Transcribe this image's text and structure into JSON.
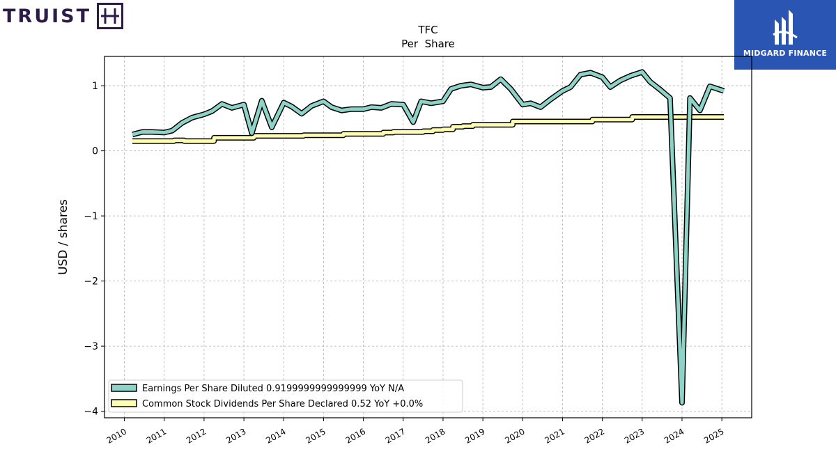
{
  "brand": {
    "left_name": "TRUIST",
    "right_name": "MIDGARD FINANCE"
  },
  "chart_data": {
    "type": "line",
    "title": "TFC",
    "subtitle": "Per  Share",
    "xlabel": "",
    "ylabel": "USD / shares",
    "ylim": [
      -4.1,
      1.45
    ],
    "xlim": [
      2009.5,
      2025.75
    ],
    "yticks": [
      -4,
      -3,
      -2,
      -1,
      0,
      1
    ],
    "xticks": [
      2010,
      2011,
      2012,
      2013,
      2014,
      2015,
      2016,
      2017,
      2018,
      2019,
      2020,
      2021,
      2022,
      2023,
      2024,
      2025
    ],
    "grid": true,
    "legend_position": "lower-left",
    "series": [
      {
        "name": "Earnings Per Share Diluted  0.9199999999999999 YoY N/A",
        "color": "#8dd3c7",
        "step": false,
        "points": [
          [
            2010.2,
            0.25
          ],
          [
            2010.45,
            0.29
          ],
          [
            2010.7,
            0.29
          ],
          [
            2011.0,
            0.28
          ],
          [
            2011.2,
            0.31
          ],
          [
            2011.45,
            0.43
          ],
          [
            2011.7,
            0.51
          ],
          [
            2012.0,
            0.56
          ],
          [
            2012.2,
            0.61
          ],
          [
            2012.45,
            0.72
          ],
          [
            2012.7,
            0.66
          ],
          [
            2013.0,
            0.71
          ],
          [
            2013.2,
            0.27
          ],
          [
            2013.45,
            0.77
          ],
          [
            2013.7,
            0.36
          ],
          [
            2014.0,
            0.74
          ],
          [
            2014.2,
            0.68
          ],
          [
            2014.45,
            0.57
          ],
          [
            2014.7,
            0.69
          ],
          [
            2015.0,
            0.76
          ],
          [
            2015.2,
            0.67
          ],
          [
            2015.45,
            0.62
          ],
          [
            2015.7,
            0.64
          ],
          [
            2016.0,
            0.64
          ],
          [
            2016.2,
            0.67
          ],
          [
            2016.45,
            0.66
          ],
          [
            2016.7,
            0.72
          ],
          [
            2017.0,
            0.71
          ],
          [
            2017.25,
            0.44
          ],
          [
            2017.45,
            0.76
          ],
          [
            2017.7,
            0.73
          ],
          [
            2018.0,
            0.76
          ],
          [
            2018.2,
            0.95
          ],
          [
            2018.45,
            1.0
          ],
          [
            2018.7,
            1.02
          ],
          [
            2019.0,
            0.97
          ],
          [
            2019.2,
            0.98
          ],
          [
            2019.45,
            1.1
          ],
          [
            2019.7,
            0.95
          ],
          [
            2020.0,
            0.71
          ],
          [
            2020.2,
            0.73
          ],
          [
            2020.45,
            0.67
          ],
          [
            2020.7,
            0.79
          ],
          [
            2021.0,
            0.92
          ],
          [
            2021.2,
            0.98
          ],
          [
            2021.45,
            1.17
          ],
          [
            2021.7,
            1.2
          ],
          [
            2022.0,
            1.13
          ],
          [
            2022.2,
            0.98
          ],
          [
            2022.45,
            1.08
          ],
          [
            2022.7,
            1.15
          ],
          [
            2023.0,
            1.21
          ],
          [
            2023.2,
            1.06
          ],
          [
            2023.45,
            0.94
          ],
          [
            2023.7,
            0.81
          ],
          [
            2024.0,
            -3.87
          ],
          [
            2024.2,
            0.81
          ],
          [
            2024.45,
            0.62
          ],
          [
            2024.7,
            0.99
          ],
          [
            2025.05,
            0.92
          ]
        ]
      },
      {
        "name": "Common Stock Dividends Per Share Declared  0.52 YoY +0.0%",
        "color": "#ffffb3",
        "step": true,
        "points": [
          [
            2010.2,
            0.15
          ],
          [
            2011.0,
            0.15
          ],
          [
            2011.25,
            0.16
          ],
          [
            2011.5,
            0.15
          ],
          [
            2012.0,
            0.15
          ],
          [
            2012.25,
            0.2
          ],
          [
            2013.0,
            0.2
          ],
          [
            2013.25,
            0.23
          ],
          [
            2014.0,
            0.23
          ],
          [
            2014.5,
            0.24
          ],
          [
            2015.0,
            0.24
          ],
          [
            2015.25,
            0.24
          ],
          [
            2015.5,
            0.26
          ],
          [
            2016.25,
            0.26
          ],
          [
            2016.5,
            0.28
          ],
          [
            2016.75,
            0.29
          ],
          [
            2017.25,
            0.29
          ],
          [
            2017.5,
            0.3
          ],
          [
            2017.75,
            0.32
          ],
          [
            2018.0,
            0.33
          ],
          [
            2018.25,
            0.37
          ],
          [
            2018.5,
            0.38
          ],
          [
            2018.75,
            0.4
          ],
          [
            2019.0,
            0.4
          ],
          [
            2019.75,
            0.45
          ],
          [
            2021.75,
            0.48
          ],
          [
            2022.75,
            0.52
          ],
          [
            2025.05,
            0.52
          ]
        ]
      }
    ]
  }
}
